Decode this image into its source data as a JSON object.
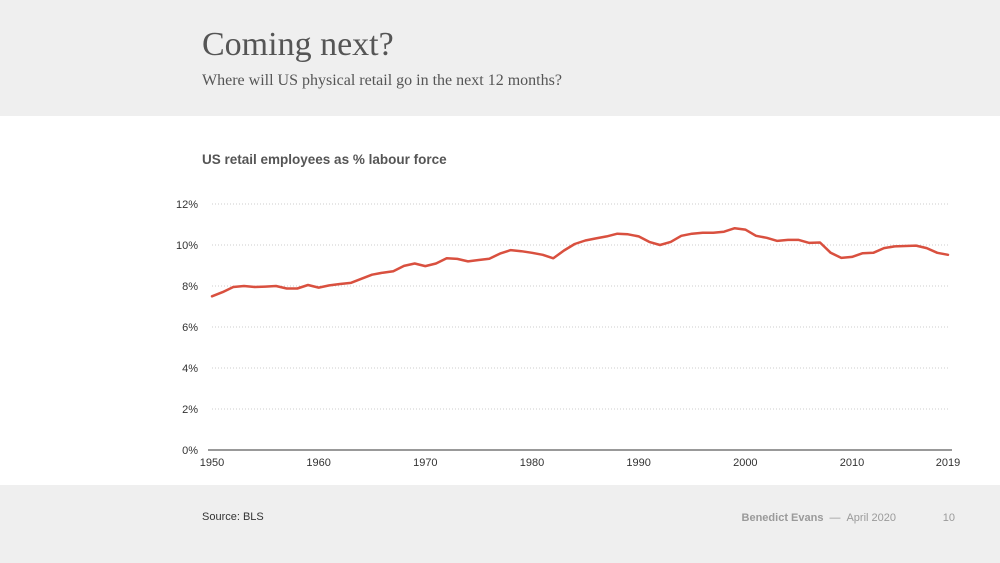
{
  "slide": {
    "title": "Coming next?",
    "subtitle": "Where will US physical retail go in the next 12 months?",
    "source": "Source: BLS",
    "author": "Benedict Evans",
    "separator": "—",
    "date": "April 2020",
    "page_number": "10"
  },
  "chart_data": {
    "type": "line",
    "title": "US retail employees as % labour force",
    "xlabel": "",
    "ylabel": "",
    "xlim": [
      1950,
      2019
    ],
    "ylim": [
      0,
      12
    ],
    "x_ticks": [
      "1950",
      "1960",
      "1970",
      "1980",
      "1990",
      "2000",
      "2010",
      "2019"
    ],
    "y_ticks": [
      "0%",
      "2%",
      "4%",
      "6%",
      "8%",
      "10%",
      "12%"
    ],
    "grid": "horizontal dotted",
    "colors": {
      "line": "#d9503f",
      "grid": "#cccccc",
      "axis": "#333333"
    },
    "series": [
      {
        "x": [
          1950,
          1951,
          1952,
          1953,
          1954,
          1955,
          1956,
          1957,
          1958,
          1959,
          1960,
          1961,
          1962,
          1963,
          1964,
          1965,
          1966,
          1967,
          1968,
          1969,
          1970,
          1971,
          1972,
          1973,
          1974,
          1975,
          1976,
          1977,
          1978,
          1979,
          1980,
          1981,
          1982,
          1983,
          1984,
          1985,
          1986,
          1987,
          1988,
          1989,
          1990,
          1991,
          1992,
          1993,
          1994,
          1995,
          1996,
          1997,
          1998,
          1999,
          2000,
          2001,
          2002,
          2003,
          2004,
          2005,
          2006,
          2007,
          2008,
          2009,
          2010,
          2011,
          2012,
          2013,
          2014,
          2015,
          2016,
          2017,
          2018,
          2019
        ],
        "values": [
          7.5,
          7.7,
          7.95,
          8.0,
          7.95,
          7.97,
          8.0,
          7.88,
          7.88,
          8.05,
          7.92,
          8.03,
          8.1,
          8.15,
          8.35,
          8.55,
          8.65,
          8.72,
          8.98,
          9.1,
          8.97,
          9.1,
          9.35,
          9.32,
          9.2,
          9.27,
          9.33,
          9.58,
          9.75,
          9.7,
          9.62,
          9.52,
          9.35,
          9.73,
          10.05,
          10.22,
          10.32,
          10.42,
          10.55,
          10.52,
          10.42,
          10.15,
          10.0,
          10.15,
          10.45,
          10.55,
          10.6,
          10.6,
          10.65,
          10.82,
          10.75,
          10.45,
          10.35,
          10.2,
          10.25,
          10.25,
          10.1,
          10.12,
          9.62,
          9.37,
          9.42,
          9.6,
          9.62,
          9.85,
          9.93,
          9.95,
          9.97,
          9.85,
          9.62,
          9.52
        ]
      }
    ]
  }
}
